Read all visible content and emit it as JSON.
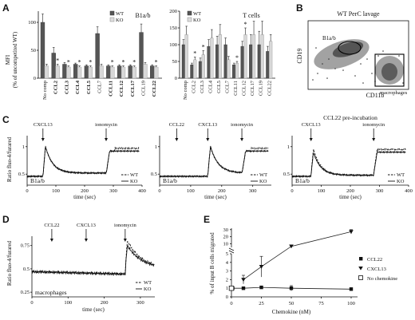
{
  "panels": {
    "A": {
      "label": "A",
      "ylabel_lines": [
        "MFI",
        "(% of uncompetited WT)"
      ],
      "sig_mark": "*",
      "charts": [
        {
          "title": "B1a/b",
          "type": "bar",
          "legend": [
            "WT",
            "KO"
          ],
          "ylim": [
            0,
            120
          ],
          "yticks": [
            "0",
            "50",
            "100"
          ],
          "categories": [
            "No comp",
            "CCL2",
            "CCL3",
            "CCL4",
            "CCL5",
            "CCL7",
            "CCL11",
            "CCL12",
            "CCL17",
            "CCL19",
            "CCL22"
          ],
          "series": [
            {
              "name": "WT",
              "values": [
                100,
                45,
                25,
                25,
                22,
                80,
                22,
                22,
                22,
                82,
                22
              ],
              "errors": [
                15,
                10,
                3,
                2,
                2,
                12,
                2,
                2,
                2,
                15,
                2
              ]
            },
            {
              "name": "KO",
              "values": [
                22,
                22,
                20,
                20,
                20,
                22,
                20,
                20,
                20,
                25,
                20
              ],
              "errors": [
                3,
                3,
                2,
                2,
                2,
                3,
                2,
                2,
                2,
                3,
                2
              ]
            }
          ],
          "significant": [
            1,
            2,
            3,
            4,
            6,
            7,
            8,
            10
          ]
        },
        {
          "title": "T cells",
          "type": "bar",
          "legend": [
            "WT",
            "KO"
          ],
          "ylim": [
            0,
            200
          ],
          "yticks": [
            "0",
            "50",
            "100",
            "150",
            "200"
          ],
          "categories": [
            "No comp",
            "CCL2",
            "CCL3",
            "CCL4",
            "CCL5",
            "CCL7",
            "CCL11",
            "CCL12",
            "CCL17",
            "CCL19",
            "CCL22"
          ],
          "series": [
            {
              "name": "WT",
              "values": [
                100,
                40,
                50,
                95,
                100,
                100,
                40,
                95,
                100,
                100,
                80
              ],
              "errors": [
                15,
                5,
                10,
                20,
                25,
                20,
                5,
                15,
                30,
                40,
                15
              ]
            },
            {
              "name": "KO",
              "values": [
                130,
                55,
                70,
                120,
                130,
                55,
                45,
                130,
                130,
                130,
                110
              ],
              "errors": [
                25,
                8,
                12,
                25,
                30,
                10,
                5,
                20,
                40,
                40,
                20
              ]
            }
          ],
          "significant": [
            1,
            2,
            6,
            7
          ]
        }
      ]
    },
    "B": {
      "label": "B",
      "title": "WT PerC lavage",
      "xlabel": "CD11b",
      "ylabel": "CD19",
      "gate1": "B1a/b",
      "gate2": "macrophages"
    },
    "C": {
      "label": "C",
      "ylabel_lines": [
        "Ratio fluo-4/furared"
      ],
      "xlabel": "time (sec)",
      "legend": [
        "WT",
        "KO"
      ],
      "charts": [
        {
          "title": "",
          "cell": "B1a/b",
          "arrows": [
            "CXCL13",
            "ionomycin"
          ],
          "arrow_times": [
            55,
            275
          ],
          "xticks": [
            "0",
            "100",
            "200",
            "300",
            "400"
          ],
          "yticks": [
            "0.5",
            "1"
          ],
          "xlim": [
            0,
            400
          ],
          "ylim": [
            0.3,
            1.2
          ]
        },
        {
          "title": "",
          "cell": "B1a/b",
          "arrows": [
            "CCL22",
            "CXCL13",
            "ionomycin"
          ],
          "arrow_times": [
            55,
            155,
            265
          ],
          "xticks": [
            "0",
            "100",
            "200",
            "300"
          ],
          "yticks": [
            "0.5",
            "1"
          ],
          "xlim": [
            0,
            360
          ],
          "ylim": [
            0.3,
            1.2
          ]
        },
        {
          "title": "CCL22 pre-incubation",
          "cell": "B1a/b",
          "arrows": [
            "CXCL13",
            "ionomycin"
          ],
          "arrow_times": [
            65,
            280
          ],
          "xticks": [
            "0",
            "100",
            "200",
            "300",
            "400"
          ],
          "yticks": [
            "0.5",
            "1"
          ],
          "xlim": [
            0,
            400
          ],
          "ylim": [
            0.3,
            1.2
          ]
        }
      ]
    },
    "D": {
      "label": "D",
      "ylabel_lines": [
        "Ratio fluo-4/furared"
      ],
      "xlabel": "time (sec)",
      "cell": "macrophages",
      "legend": [
        "WT",
        "KO"
      ],
      "arrows": [
        "CCL22",
        "CXCL13",
        "ionomycin"
      ],
      "arrow_times": [
        55,
        150,
        258
      ],
      "xticks": [
        "0",
        "100",
        "200",
        "300"
      ],
      "yticks": [
        "0.25",
        "0.5",
        "0.75"
      ],
      "xlim": [
        0,
        340
      ],
      "ylim": [
        0.2,
        0.85
      ]
    },
    "E": {
      "label": "E",
      "ylabel_lines": [
        "% of input B cells migrated"
      ],
      "xlabel": "Chemokine (nM)",
      "xticks": [
        "0",
        "25",
        "50",
        "75",
        "100"
      ],
      "yticks_lower": [
        "0",
        "1",
        "2",
        "3",
        "4",
        "5"
      ],
      "yticks_upper": [
        "10",
        "20",
        "30"
      ],
      "legend": [
        "CCL22",
        "CXCL13",
        "No chemokine"
      ]
    }
  },
  "chart_data": [
    {
      "type": "line",
      "panel": "E",
      "xlabel": "Chemokine (nM)",
      "ylabel": "% of input B cells migrated",
      "series": [
        {
          "name": "CCL22",
          "x": [
            1,
            10,
            25,
            50,
            100
          ],
          "y": [
            1.0,
            1.0,
            1.1,
            1.0,
            0.9
          ],
          "err": [
            0.1,
            0.1,
            0.15,
            0.3,
            0.1
          ]
        },
        {
          "name": "CXCL13",
          "x": [
            10,
            25,
            50,
            100
          ],
          "y": [
            2.0,
            3.5,
            6.5,
            27
          ],
          "err": [
            0.5,
            1.2,
            0,
            3
          ]
        },
        {
          "name": "No chemokine",
          "x": [
            0
          ],
          "y": [
            1.0
          ],
          "err": [
            0.1
          ]
        }
      ]
    }
  ]
}
